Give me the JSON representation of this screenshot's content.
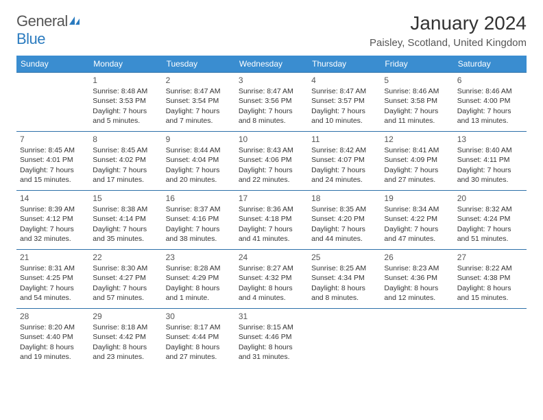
{
  "brand": {
    "name_part1": "General",
    "name_part2": "Blue"
  },
  "title": "January 2024",
  "location": "Paisley, Scotland, United Kingdom",
  "colors": {
    "header_bg": "#3a8dd0",
    "row_border": "#2b6fa8",
    "brand_blue": "#2b7bbf"
  },
  "weekdays": [
    "Sunday",
    "Monday",
    "Tuesday",
    "Wednesday",
    "Thursday",
    "Friday",
    "Saturday"
  ],
  "weeks": [
    [
      null,
      {
        "d": "1",
        "sr": "8:48 AM",
        "ss": "3:53 PM",
        "dl": "7 hours and 5 minutes."
      },
      {
        "d": "2",
        "sr": "8:47 AM",
        "ss": "3:54 PM",
        "dl": "7 hours and 7 minutes."
      },
      {
        "d": "3",
        "sr": "8:47 AM",
        "ss": "3:56 PM",
        "dl": "7 hours and 8 minutes."
      },
      {
        "d": "4",
        "sr": "8:47 AM",
        "ss": "3:57 PM",
        "dl": "7 hours and 10 minutes."
      },
      {
        "d": "5",
        "sr": "8:46 AM",
        "ss": "3:58 PM",
        "dl": "7 hours and 11 minutes."
      },
      {
        "d": "6",
        "sr": "8:46 AM",
        "ss": "4:00 PM",
        "dl": "7 hours and 13 minutes."
      }
    ],
    [
      {
        "d": "7",
        "sr": "8:45 AM",
        "ss": "4:01 PM",
        "dl": "7 hours and 15 minutes."
      },
      {
        "d": "8",
        "sr": "8:45 AM",
        "ss": "4:02 PM",
        "dl": "7 hours and 17 minutes."
      },
      {
        "d": "9",
        "sr": "8:44 AM",
        "ss": "4:04 PM",
        "dl": "7 hours and 20 minutes."
      },
      {
        "d": "10",
        "sr": "8:43 AM",
        "ss": "4:06 PM",
        "dl": "7 hours and 22 minutes."
      },
      {
        "d": "11",
        "sr": "8:42 AM",
        "ss": "4:07 PM",
        "dl": "7 hours and 24 minutes."
      },
      {
        "d": "12",
        "sr": "8:41 AM",
        "ss": "4:09 PM",
        "dl": "7 hours and 27 minutes."
      },
      {
        "d": "13",
        "sr": "8:40 AM",
        "ss": "4:11 PM",
        "dl": "7 hours and 30 minutes."
      }
    ],
    [
      {
        "d": "14",
        "sr": "8:39 AM",
        "ss": "4:12 PM",
        "dl": "7 hours and 32 minutes."
      },
      {
        "d": "15",
        "sr": "8:38 AM",
        "ss": "4:14 PM",
        "dl": "7 hours and 35 minutes."
      },
      {
        "d": "16",
        "sr": "8:37 AM",
        "ss": "4:16 PM",
        "dl": "7 hours and 38 minutes."
      },
      {
        "d": "17",
        "sr": "8:36 AM",
        "ss": "4:18 PM",
        "dl": "7 hours and 41 minutes."
      },
      {
        "d": "18",
        "sr": "8:35 AM",
        "ss": "4:20 PM",
        "dl": "7 hours and 44 minutes."
      },
      {
        "d": "19",
        "sr": "8:34 AM",
        "ss": "4:22 PM",
        "dl": "7 hours and 47 minutes."
      },
      {
        "d": "20",
        "sr": "8:32 AM",
        "ss": "4:24 PM",
        "dl": "7 hours and 51 minutes."
      }
    ],
    [
      {
        "d": "21",
        "sr": "8:31 AM",
        "ss": "4:25 PM",
        "dl": "7 hours and 54 minutes."
      },
      {
        "d": "22",
        "sr": "8:30 AM",
        "ss": "4:27 PM",
        "dl": "7 hours and 57 minutes."
      },
      {
        "d": "23",
        "sr": "8:28 AM",
        "ss": "4:29 PM",
        "dl": "8 hours and 1 minute."
      },
      {
        "d": "24",
        "sr": "8:27 AM",
        "ss": "4:32 PM",
        "dl": "8 hours and 4 minutes."
      },
      {
        "d": "25",
        "sr": "8:25 AM",
        "ss": "4:34 PM",
        "dl": "8 hours and 8 minutes."
      },
      {
        "d": "26",
        "sr": "8:23 AM",
        "ss": "4:36 PM",
        "dl": "8 hours and 12 minutes."
      },
      {
        "d": "27",
        "sr": "8:22 AM",
        "ss": "4:38 PM",
        "dl": "8 hours and 15 minutes."
      }
    ],
    [
      {
        "d": "28",
        "sr": "8:20 AM",
        "ss": "4:40 PM",
        "dl": "8 hours and 19 minutes."
      },
      {
        "d": "29",
        "sr": "8:18 AM",
        "ss": "4:42 PM",
        "dl": "8 hours and 23 minutes."
      },
      {
        "d": "30",
        "sr": "8:17 AM",
        "ss": "4:44 PM",
        "dl": "8 hours and 27 minutes."
      },
      {
        "d": "31",
        "sr": "8:15 AM",
        "ss": "4:46 PM",
        "dl": "8 hours and 31 minutes."
      },
      null,
      null,
      null
    ]
  ],
  "labels": {
    "sunrise": "Sunrise:",
    "sunset": "Sunset:",
    "daylight": "Daylight:"
  }
}
